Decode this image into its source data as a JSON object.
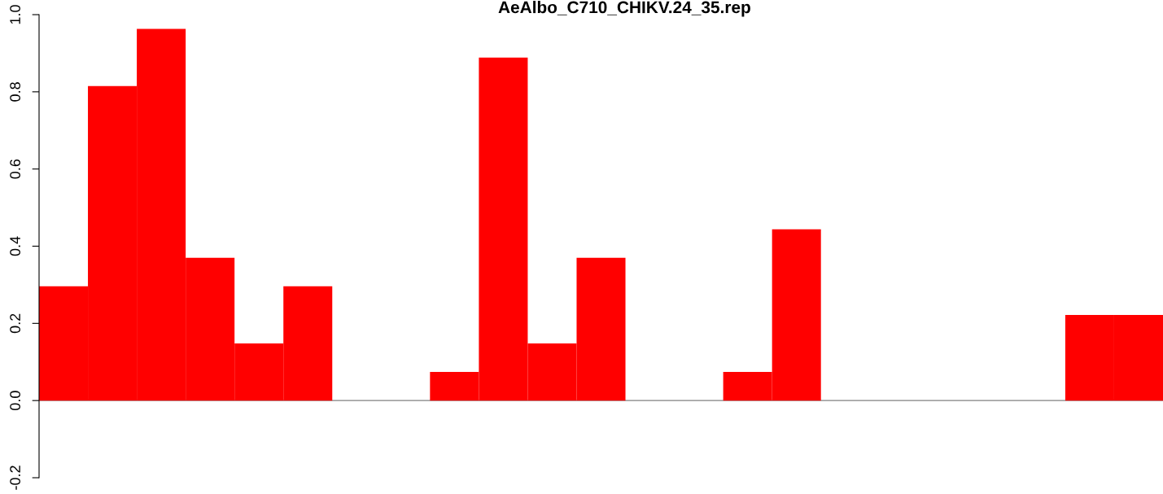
{
  "chart_data": {
    "type": "bar",
    "title": "AeAlbo_C710_CHIKV.24_35.rep",
    "categories": [
      null,
      null,
      null,
      null,
      null,
      null,
      null,
      null,
      null,
      null,
      null,
      null,
      null,
      null,
      null,
      null,
      null,
      null,
      null,
      null,
      null,
      null,
      null
    ],
    "values": [
      0.296,
      0.815,
      0.963,
      0.37,
      0.148,
      0.296,
      0,
      0,
      0.074,
      0.889,
      0.148,
      0.37,
      0,
      0,
      0.074,
      0.444,
      0,
      0,
      0,
      0,
      0,
      0.222,
      0.222
    ],
    "color": "#ff0000",
    "ylim": [
      -0.2,
      1.0
    ],
    "yticks": [
      {
        "value": -0.2,
        "label": "-0.2"
      },
      {
        "value": 0,
        "label": "0.0"
      },
      {
        "value": 0.2,
        "label": "0.2"
      },
      {
        "value": 0.4,
        "label": "0.4"
      },
      {
        "value": 0.6,
        "label": "0.6"
      },
      {
        "value": 0.8,
        "label": "0.8"
      },
      {
        "value": 1,
        "label": "1.0"
      }
    ],
    "ref_lines": [
      {
        "axis": "y",
        "value": 0,
        "label": null,
        "color": "#808080"
      }
    ],
    "grid": false,
    "legend": false
  }
}
